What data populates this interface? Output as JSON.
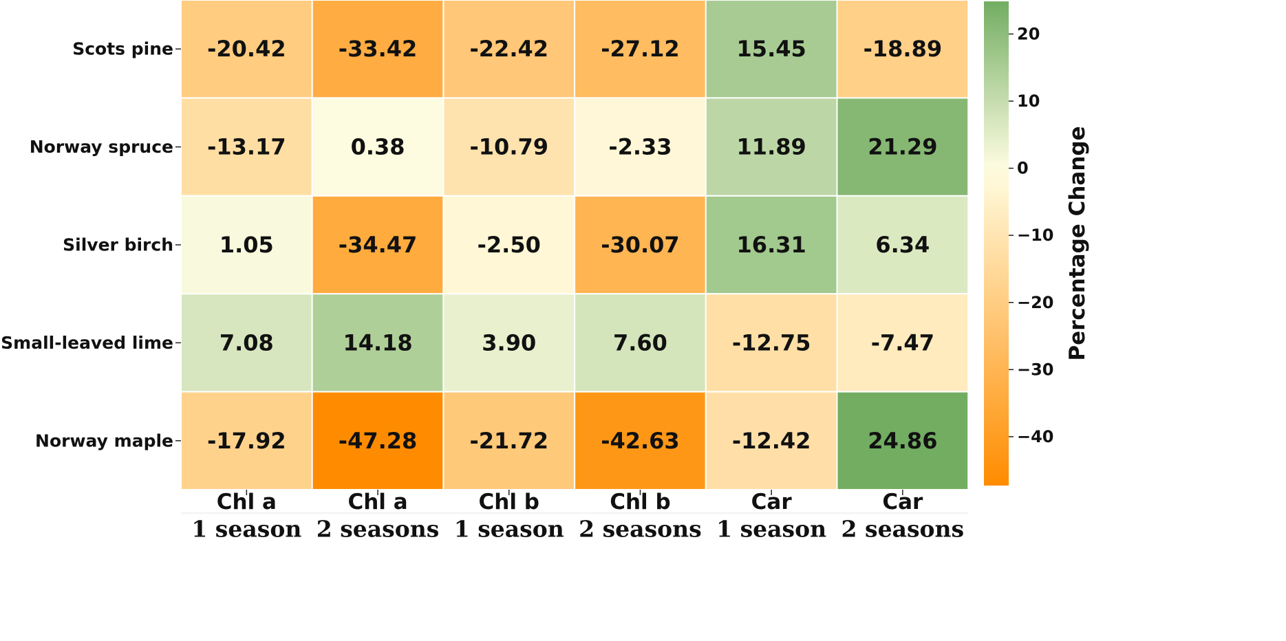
{
  "chart_data": {
    "type": "heatmap",
    "rows": [
      "Scots pine",
      "Norway spruce",
      "Silver birch",
      "Small-leaved lime",
      "Norway maple"
    ],
    "columns": [
      {
        "top": "Chl a",
        "bottom": "1 season"
      },
      {
        "top": "Chl a",
        "bottom": "2 seasons"
      },
      {
        "top": "Chl b",
        "bottom": "1 season"
      },
      {
        "top": "Chl b",
        "bottom": "2 seasons"
      },
      {
        "top": "Car",
        "bottom": "1 season"
      },
      {
        "top": "Car",
        "bottom": "2 seasons"
      }
    ],
    "values": [
      [
        -20.42,
        -33.42,
        -22.42,
        -27.12,
        15.45,
        -18.89
      ],
      [
        -13.17,
        0.38,
        -10.79,
        -2.33,
        11.89,
        21.29
      ],
      [
        1.05,
        -34.47,
        -2.5,
        -30.07,
        16.31,
        6.34
      ],
      [
        7.08,
        14.18,
        3.9,
        7.6,
        -12.75,
        -7.47
      ],
      [
        -17.92,
        -47.28,
        -21.72,
        -42.63,
        -12.42,
        24.86
      ]
    ],
    "value_labels": [
      [
        "-20.42",
        "-33.42",
        "-22.42",
        "-27.12",
        "15.45",
        "-18.89"
      ],
      [
        "-13.17",
        "0.38",
        "-10.79",
        "-2.33",
        "11.89",
        "21.29"
      ],
      [
        "1.05",
        "-34.47",
        "-2.50",
        "-30.07",
        "16.31",
        "6.34"
      ],
      [
        "7.08",
        "14.18",
        "3.90",
        "7.60",
        "-12.75",
        "-7.47"
      ],
      [
        "-17.92",
        "-47.28",
        "-21.72",
        "-42.63",
        "-12.42",
        "24.86"
      ]
    ],
    "colorbar": {
      "label": "Percentage Change",
      "range": [
        -47.28,
        24.86
      ],
      "ticks": [
        20,
        10,
        0,
        -10,
        -20,
        -30,
        -40
      ],
      "tick_labels": [
        "20",
        "10",
        "0",
        "−10",
        "−20",
        "−30",
        "−40"
      ],
      "colors": {
        "low": "#ff8c00",
        "mid": "#fffde2",
        "high": "#72ad62"
      }
    }
  }
}
